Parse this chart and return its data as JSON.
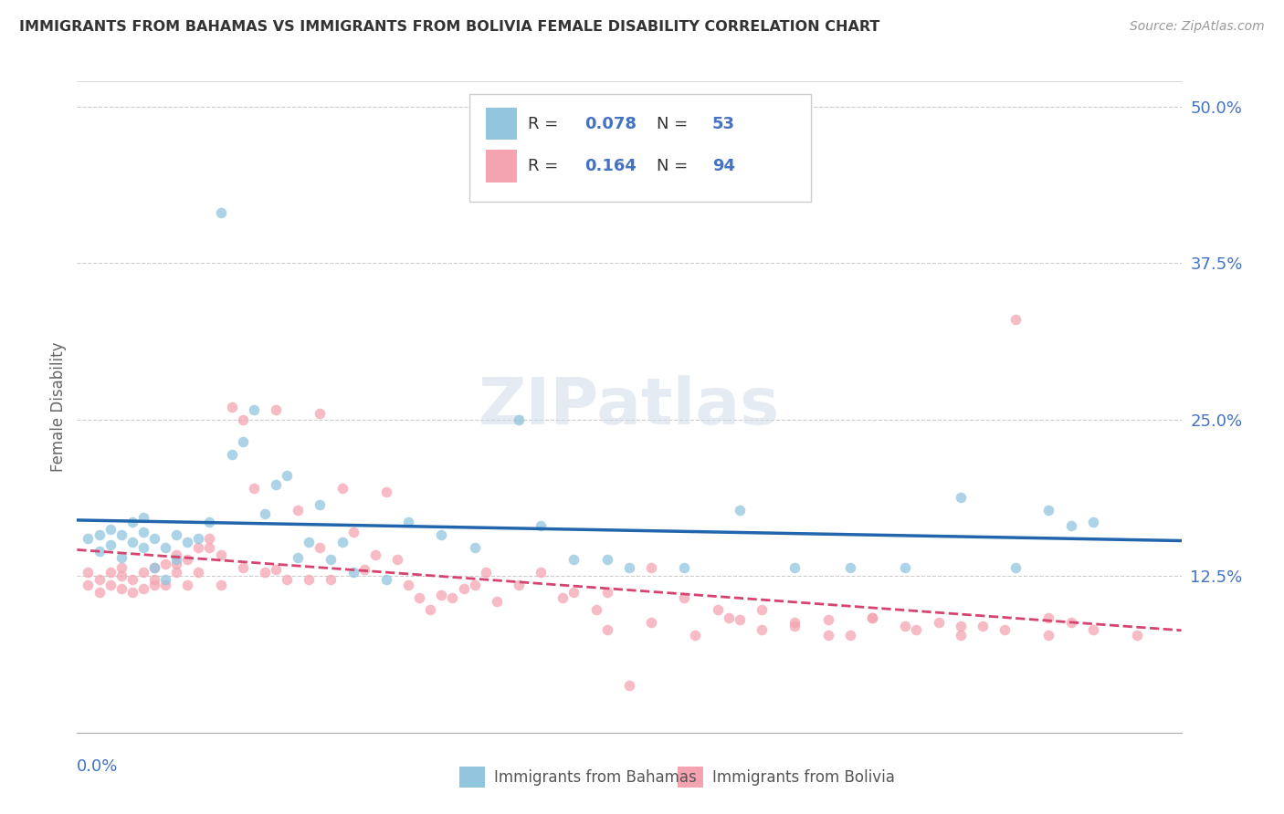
{
  "title": "IMMIGRANTS FROM BAHAMAS VS IMMIGRANTS FROM BOLIVIA FEMALE DISABILITY CORRELATION CHART",
  "source": "Source: ZipAtlas.com",
  "ylabel": "Female Disability",
  "ytick_labels": [
    "12.5%",
    "25.0%",
    "37.5%",
    "50.0%"
  ],
  "ytick_values": [
    0.125,
    0.25,
    0.375,
    0.5
  ],
  "xlim": [
    0.0,
    0.1
  ],
  "ylim": [
    0.0,
    0.52
  ],
  "color_bahamas": "#92c5de",
  "color_bolivia": "#f4a4b0",
  "color_line_bahamas": "#2166ac",
  "color_line_bolivia": "#d6436e",
  "watermark": "ZIPatlas",
  "bahamas_x": [
    0.001,
    0.002,
    0.002,
    0.003,
    0.003,
    0.004,
    0.004,
    0.005,
    0.005,
    0.006,
    0.006,
    0.006,
    0.007,
    0.007,
    0.008,
    0.008,
    0.009,
    0.009,
    0.01,
    0.011,
    0.012,
    0.013,
    0.014,
    0.015,
    0.016,
    0.017,
    0.018,
    0.019,
    0.02,
    0.021,
    0.022,
    0.023,
    0.024,
    0.025,
    0.028,
    0.03,
    0.033,
    0.036,
    0.04,
    0.042,
    0.045,
    0.048,
    0.05,
    0.055,
    0.06,
    0.065,
    0.07,
    0.075,
    0.08,
    0.085,
    0.088,
    0.09,
    0.092
  ],
  "bahamas_y": [
    0.155,
    0.145,
    0.158,
    0.15,
    0.162,
    0.158,
    0.14,
    0.152,
    0.168,
    0.148,
    0.16,
    0.172,
    0.155,
    0.132,
    0.148,
    0.122,
    0.158,
    0.138,
    0.152,
    0.155,
    0.168,
    0.415,
    0.222,
    0.232,
    0.258,
    0.175,
    0.198,
    0.205,
    0.14,
    0.152,
    0.182,
    0.138,
    0.152,
    0.128,
    0.122,
    0.168,
    0.158,
    0.148,
    0.25,
    0.165,
    0.138,
    0.138,
    0.132,
    0.132,
    0.178,
    0.132,
    0.132,
    0.132,
    0.188,
    0.132,
    0.178,
    0.165,
    0.168
  ],
  "bolivia_x": [
    0.001,
    0.001,
    0.002,
    0.002,
    0.003,
    0.003,
    0.004,
    0.004,
    0.004,
    0.005,
    0.005,
    0.006,
    0.006,
    0.007,
    0.007,
    0.007,
    0.008,
    0.008,
    0.009,
    0.009,
    0.009,
    0.01,
    0.01,
    0.011,
    0.011,
    0.012,
    0.012,
    0.013,
    0.013,
    0.014,
    0.015,
    0.015,
    0.016,
    0.017,
    0.018,
    0.018,
    0.019,
    0.02,
    0.021,
    0.022,
    0.022,
    0.023,
    0.024,
    0.025,
    0.026,
    0.027,
    0.028,
    0.029,
    0.03,
    0.031,
    0.032,
    0.033,
    0.034,
    0.035,
    0.036,
    0.037,
    0.038,
    0.04,
    0.042,
    0.044,
    0.045,
    0.047,
    0.048,
    0.05,
    0.052,
    0.055,
    0.058,
    0.06,
    0.062,
    0.065,
    0.068,
    0.07,
    0.072,
    0.075,
    0.078,
    0.08,
    0.082,
    0.085,
    0.088,
    0.09,
    0.048,
    0.052,
    0.056,
    0.059,
    0.062,
    0.065,
    0.068,
    0.072,
    0.076,
    0.08,
    0.084,
    0.088,
    0.092,
    0.096
  ],
  "bolivia_y": [
    0.118,
    0.128,
    0.112,
    0.122,
    0.128,
    0.118,
    0.115,
    0.125,
    0.132,
    0.112,
    0.122,
    0.115,
    0.128,
    0.118,
    0.122,
    0.132,
    0.118,
    0.135,
    0.128,
    0.142,
    0.135,
    0.118,
    0.138,
    0.128,
    0.148,
    0.148,
    0.155,
    0.118,
    0.142,
    0.26,
    0.25,
    0.132,
    0.195,
    0.128,
    0.13,
    0.258,
    0.122,
    0.178,
    0.122,
    0.148,
    0.255,
    0.122,
    0.195,
    0.16,
    0.13,
    0.142,
    0.192,
    0.138,
    0.118,
    0.108,
    0.098,
    0.11,
    0.108,
    0.115,
    0.118,
    0.128,
    0.105,
    0.118,
    0.128,
    0.108,
    0.112,
    0.098,
    0.112,
    0.038,
    0.132,
    0.108,
    0.098,
    0.09,
    0.098,
    0.085,
    0.09,
    0.078,
    0.092,
    0.085,
    0.088,
    0.078,
    0.085,
    0.33,
    0.092,
    0.088,
    0.082,
    0.088,
    0.078,
    0.092,
    0.082,
    0.088,
    0.078,
    0.092,
    0.082,
    0.085,
    0.082,
    0.078,
    0.082,
    0.078
  ]
}
